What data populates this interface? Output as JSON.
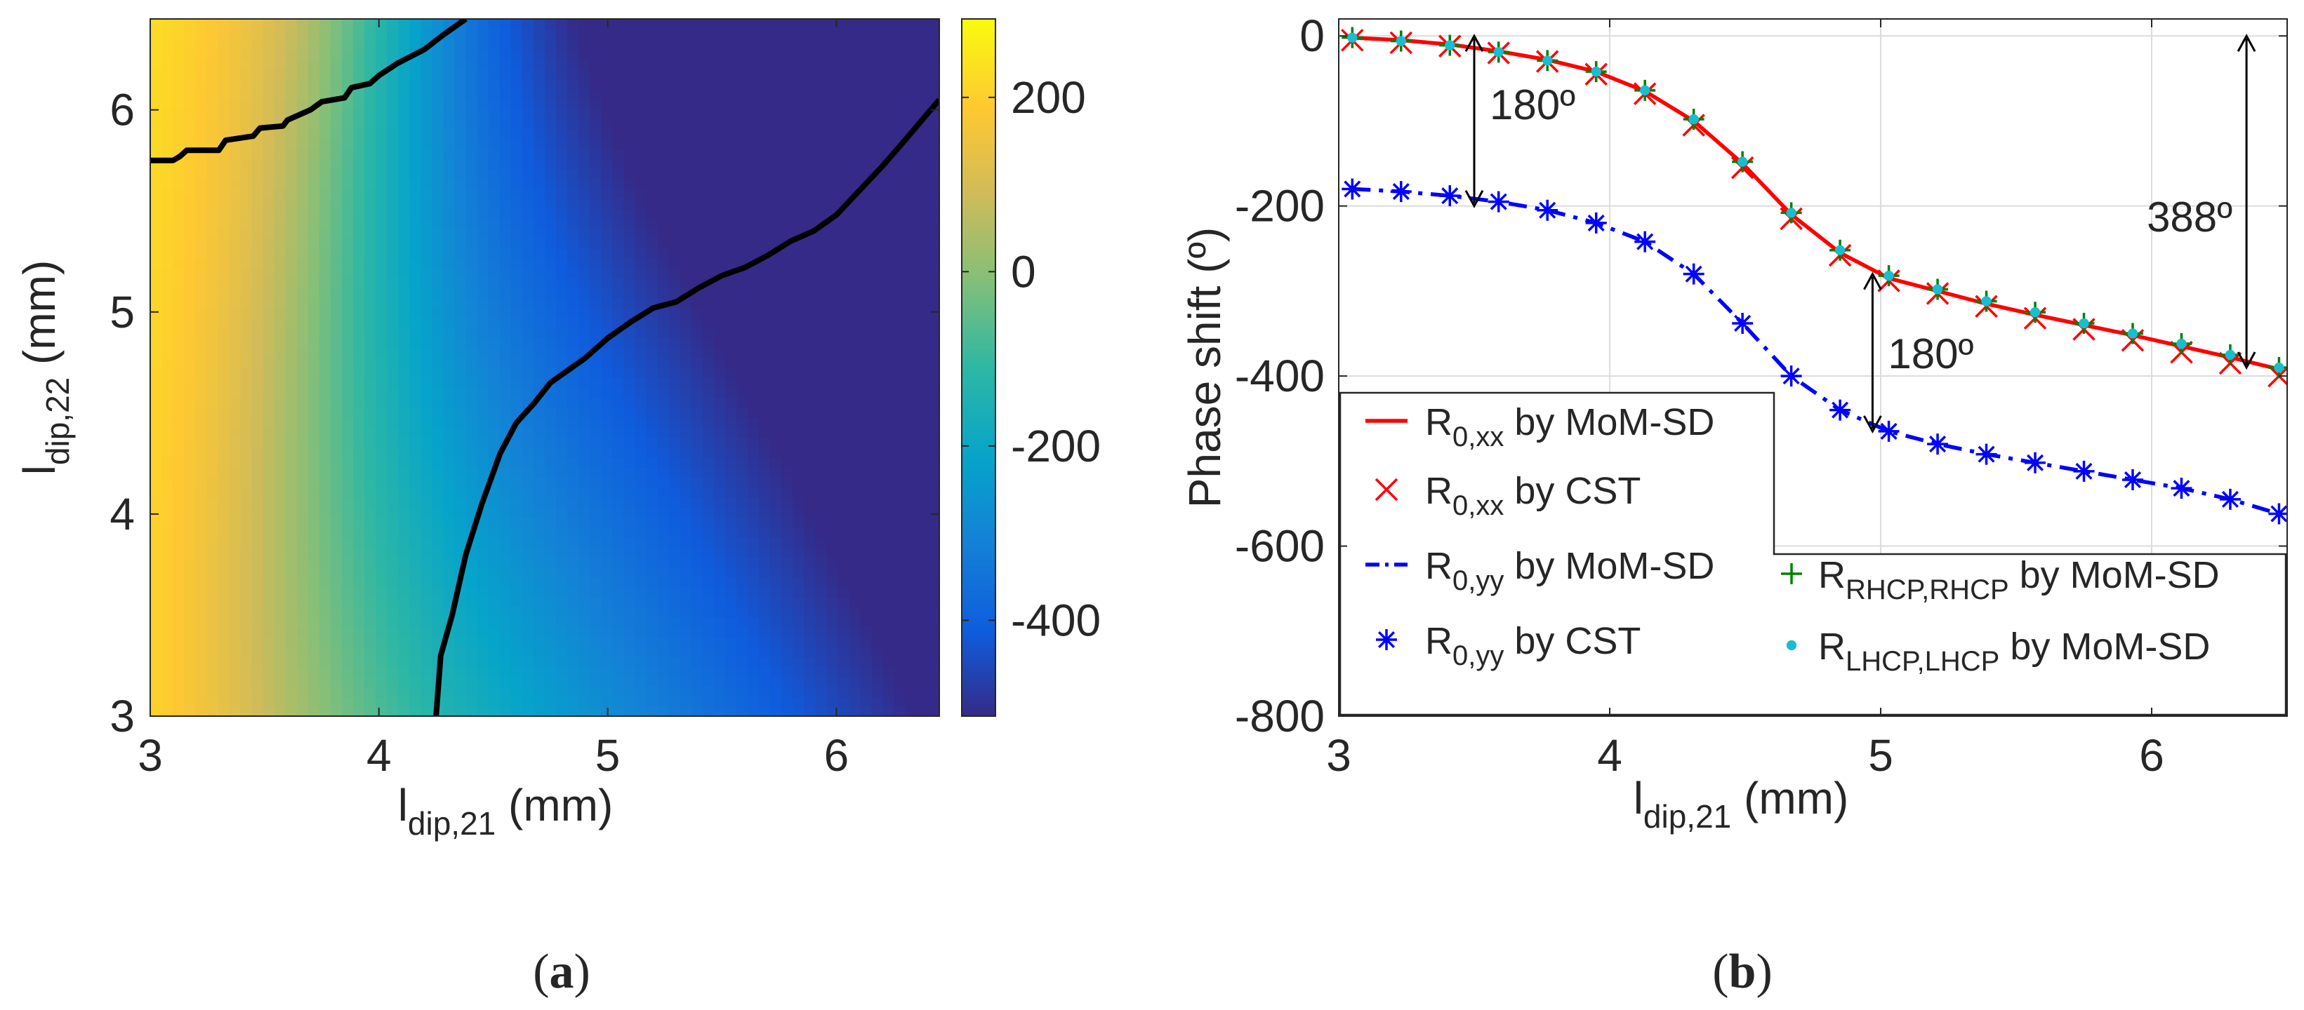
{
  "panel_labels": {
    "a": [
      "(",
      "a",
      ")"
    ],
    "b": [
      "(",
      "b",
      ")"
    ]
  },
  "chart_data": [
    {
      "type": "heatmap",
      "panel": "a",
      "xlabel": {
        "main": "l",
        "sub": "dip,21",
        "unit": " (mm)"
      },
      "ylabel": {
        "main": "l",
        "sub": "dip,22",
        "unit": " (mm)"
      },
      "xlim": [
        3,
        6.45
      ],
      "ylim": [
        3,
        6.45
      ],
      "xticks": [
        3,
        4,
        5,
        6
      ],
      "yticks": [
        3,
        4,
        5,
        6
      ],
      "xtick_labels": [
        "3",
        "4",
        "5",
        "6"
      ],
      "ytick_labels": [
        "3",
        "4",
        "5",
        "6"
      ],
      "colorbar": {
        "range": [
          -510,
          290
        ],
        "ticks": [
          200,
          0,
          -200,
          -400
        ],
        "tick_labels": [
          "200",
          "0",
          "-200",
          "-400"
        ],
        "colormap": "parula"
      },
      "contours": [
        {
          "level": 180,
          "points": [
            [
              3.0,
              5.75
            ],
            [
              3.1,
              5.75
            ],
            [
              3.13,
              5.77
            ],
            [
              3.16,
              5.8
            ],
            [
              3.3,
              5.8
            ],
            [
              3.33,
              5.85
            ],
            [
              3.45,
              5.87
            ],
            [
              3.48,
              5.91
            ],
            [
              3.58,
              5.92
            ],
            [
              3.6,
              5.95
            ],
            [
              3.7,
              6.0
            ],
            [
              3.75,
              6.04
            ],
            [
              3.85,
              6.06
            ],
            [
              3.88,
              6.11
            ],
            [
              3.96,
              6.13
            ],
            [
              4.0,
              6.17
            ],
            [
              4.08,
              6.23
            ],
            [
              4.2,
              6.3
            ],
            [
              4.28,
              6.37
            ],
            [
              4.38,
              6.45
            ]
          ]
        },
        {
          "level": -180,
          "points": [
            [
              4.25,
              3.0
            ],
            [
              4.27,
              3.3
            ],
            [
              4.32,
              3.5
            ],
            [
              4.38,
              3.8
            ],
            [
              4.45,
              4.05
            ],
            [
              4.53,
              4.3
            ],
            [
              4.6,
              4.45
            ],
            [
              4.68,
              4.55
            ],
            [
              4.75,
              4.65
            ],
            [
              4.9,
              4.77
            ],
            [
              5.0,
              4.87
            ],
            [
              5.1,
              4.95
            ],
            [
              5.2,
              5.02
            ],
            [
              5.3,
              5.05
            ],
            [
              5.4,
              5.12
            ],
            [
              5.5,
              5.18
            ],
            [
              5.6,
              5.22
            ],
            [
              5.7,
              5.28
            ],
            [
              5.8,
              5.35
            ],
            [
              5.9,
              5.4
            ],
            [
              6.0,
              5.48
            ],
            [
              6.1,
              5.6
            ],
            [
              6.2,
              5.72
            ],
            [
              6.3,
              5.85
            ],
            [
              6.45,
              6.05
            ]
          ]
        }
      ]
    },
    {
      "type": "line",
      "panel": "b",
      "xlabel": {
        "main": "l",
        "sub": "dip,21",
        "unit": " (mm)"
      },
      "ylabel": "Phase shift (º)",
      "xlim": [
        3,
        6.5
      ],
      "ylim": [
        -800,
        20
      ],
      "xticks": [
        3,
        4,
        5,
        6
      ],
      "yticks": [
        0,
        -200,
        -400,
        -600,
        -800
      ],
      "xtick_labels": [
        "3",
        "4",
        "5",
        "6"
      ],
      "ytick_labels": [
        "0",
        "-200",
        "-400",
        "-600",
        "-800"
      ],
      "grid": true,
      "x": [
        3.05,
        3.23,
        3.41,
        3.59,
        3.77,
        3.95,
        4.13,
        4.31,
        4.49,
        4.67,
        4.85,
        5.03,
        5.21,
        5.39,
        5.57,
        5.75,
        5.93,
        6.11,
        6.29,
        6.47
      ],
      "series": [
        {
          "name": "R_0,xx by MoM-SD",
          "style": "solid",
          "color": "#ff0000",
          "values": [
            -2,
            -5,
            -10,
            -18,
            -28,
            -42,
            -65,
            -100,
            -150,
            -210,
            -255,
            -285,
            -300,
            -315,
            -328,
            -340,
            -352,
            -365,
            -378,
            -392
          ]
        },
        {
          "name": "R_0,xx by CST",
          "marker": "x",
          "color": "#ff0000",
          "values": [
            -5,
            -8,
            -12,
            -20,
            -30,
            -45,
            -68,
            -105,
            -155,
            -215,
            -258,
            -288,
            -303,
            -318,
            -332,
            -345,
            -358,
            -372,
            -385,
            -400
          ]
        },
        {
          "name": "R_0,yy by MoM-SD",
          "style": "dashdot",
          "color": "#0000ff",
          "values": [
            -180,
            -183,
            -188,
            -195,
            -205,
            -220,
            -242,
            -280,
            -338,
            -400,
            -440,
            -465,
            -480,
            -492,
            -502,
            -512,
            -522,
            -532,
            -545,
            -562
          ]
        },
        {
          "name": "R_0,yy by CST",
          "marker": "asterisk",
          "color": "#0000ff",
          "values": [
            -180,
            -183,
            -188,
            -195,
            -205,
            -220,
            -242,
            -280,
            -338,
            -400,
            -440,
            -465,
            -480,
            -492,
            -502,
            -512,
            -522,
            -532,
            -545,
            -562
          ]
        },
        {
          "name": "R_RHCP,RHCP by MoM-SD",
          "marker": "plus",
          "color": "#008000",
          "values": [
            -2,
            -6,
            -11,
            -19,
            -29,
            -42,
            -64,
            -98,
            -148,
            -208,
            -252,
            -282,
            -298,
            -312,
            -325,
            -338,
            -350,
            -362,
            -375,
            -390
          ]
        },
        {
          "name": "R_LHCP,LHCP by MoM-SD",
          "marker": "dot",
          "color": "#17becf",
          "values": [
            -2,
            -6,
            -11,
            -19,
            -29,
            -42,
            -64,
            -98,
            -148,
            -208,
            -252,
            -282,
            -298,
            -312,
            -325,
            -338,
            -350,
            -362,
            -375,
            -390
          ]
        }
      ],
      "legend": {
        "placement": "bottom-left",
        "entries": [
          {
            "main": "R",
            "sub": "0,xx",
            "text": " by MoM-SD"
          },
          {
            "main": "R",
            "sub": "0,xx",
            "text": " by CST"
          },
          {
            "main": "R",
            "sub": "0,yy",
            "text": " by MoM-SD"
          },
          {
            "main": "R",
            "sub": "0,yy",
            "text": " by CST"
          },
          {
            "main": "R",
            "sub": "RHCP,RHCP",
            "text": " by MoM-SD"
          },
          {
            "main": "R",
            "sub": "LHCP,LHCP",
            "text": " by MoM-SD"
          }
        ]
      },
      "annotations": [
        {
          "text": "180º",
          "x": 3.5,
          "y_from": 0,
          "y_to": -200
        },
        {
          "text": "180º",
          "x": 4.97,
          "y_from": -280,
          "y_to": -465
        },
        {
          "text": "388º",
          "x": 6.35,
          "y_from": 0,
          "y_to": -390
        }
      ]
    }
  ]
}
